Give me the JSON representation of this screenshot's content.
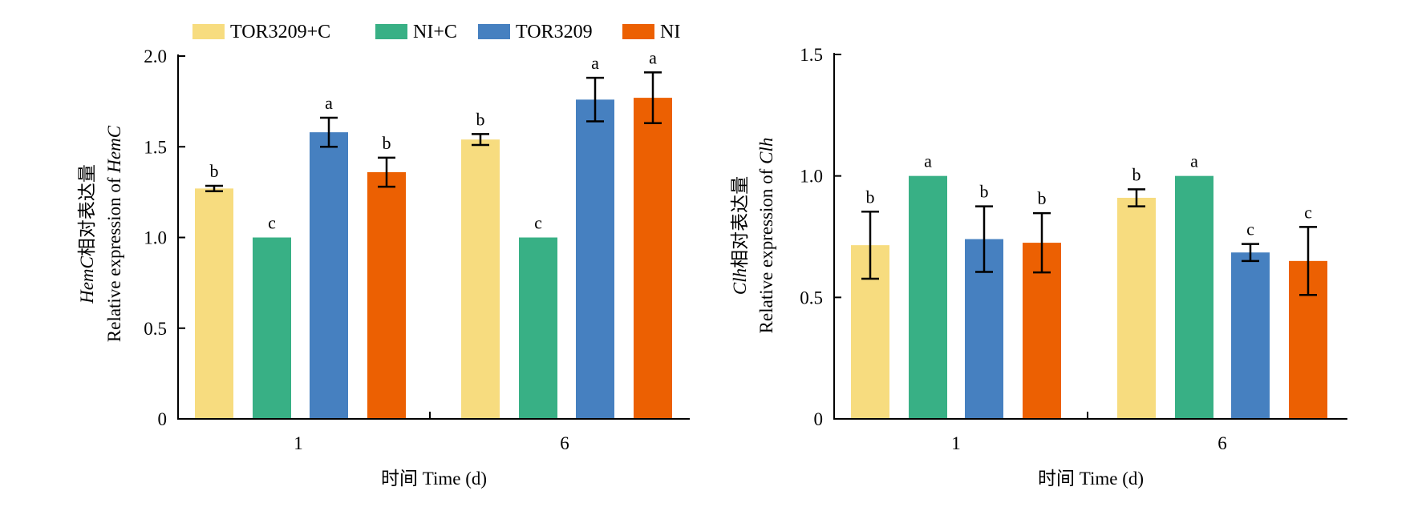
{
  "legend": {
    "position": "top",
    "items": [
      {
        "label": "TOR3209+C",
        "color": "#F7DC7F"
      },
      {
        "label": "NI+C",
        "color": "#38B085"
      },
      {
        "label": "TOR3209",
        "color": "#4680C0"
      },
      {
        "label": "NI",
        "color": "#EC6002"
      }
    ]
  },
  "chart_data": [
    {
      "type": "bar",
      "categories": [
        "1",
        "6"
      ],
      "xlabel": "时间 Time (d)",
      "ylabel_line1": {
        "gene": "HemC",
        "text": "相对表达量"
      },
      "ylabel_line2": {
        "text": "Relative expression of ",
        "gene": "HemC"
      },
      "ylim": [
        0,
        2.0
      ],
      "yticks": [
        "0",
        "0.5",
        "1.0",
        "1.5",
        "2.0"
      ],
      "ytick_values": [
        0,
        0.5,
        1.0,
        1.5,
        2.0
      ],
      "grid": false,
      "series": [
        {
          "name": "TOR3209+C",
          "values": [
            1.27,
            1.54
          ],
          "errors": [
            0.015,
            0.03
          ],
          "labels": [
            "b",
            "b"
          ]
        },
        {
          "name": "NI+C",
          "values": [
            1.0,
            1.0
          ],
          "errors": [
            0,
            0
          ],
          "labels": [
            "c",
            "c"
          ]
        },
        {
          "name": "TOR3209",
          "values": [
            1.58,
            1.76
          ],
          "errors": [
            0.08,
            0.12
          ],
          "labels": [
            "a",
            "a"
          ]
        },
        {
          "name": "NI",
          "values": [
            1.36,
            1.77
          ],
          "errors": [
            0.08,
            0.14
          ],
          "labels": [
            "b",
            "a"
          ]
        }
      ]
    },
    {
      "type": "bar",
      "categories": [
        "1",
        "6"
      ],
      "xlabel": "时间 Time (d)",
      "ylabel_line1": {
        "gene": "Clh",
        "text": "相对表达量"
      },
      "ylabel_line2": {
        "text": "Relative expression of ",
        "gene": "Clh"
      },
      "ylim": [
        0,
        1.5
      ],
      "yticks": [
        "0",
        "0.5",
        "1.0",
        "1.5"
      ],
      "ytick_values": [
        0,
        0.5,
        1.0,
        1.5
      ],
      "grid": false,
      "series": [
        {
          "name": "TOR3209+C",
          "values": [
            0.715,
            0.91
          ],
          "errors": [
            0.138,
            0.035
          ],
          "labels": [
            "b",
            "b"
          ]
        },
        {
          "name": "NI+C",
          "values": [
            1.0,
            1.0
          ],
          "errors": [
            0,
            0
          ],
          "labels": [
            "a",
            "a"
          ]
        },
        {
          "name": "TOR3209",
          "values": [
            0.74,
            0.685
          ],
          "errors": [
            0.135,
            0.035
          ],
          "labels": [
            "b",
            "c"
          ]
        },
        {
          "name": "NI",
          "values": [
            0.725,
            0.65
          ],
          "errors": [
            0.122,
            0.14
          ],
          "labels": [
            "b",
            "c"
          ]
        }
      ]
    }
  ]
}
